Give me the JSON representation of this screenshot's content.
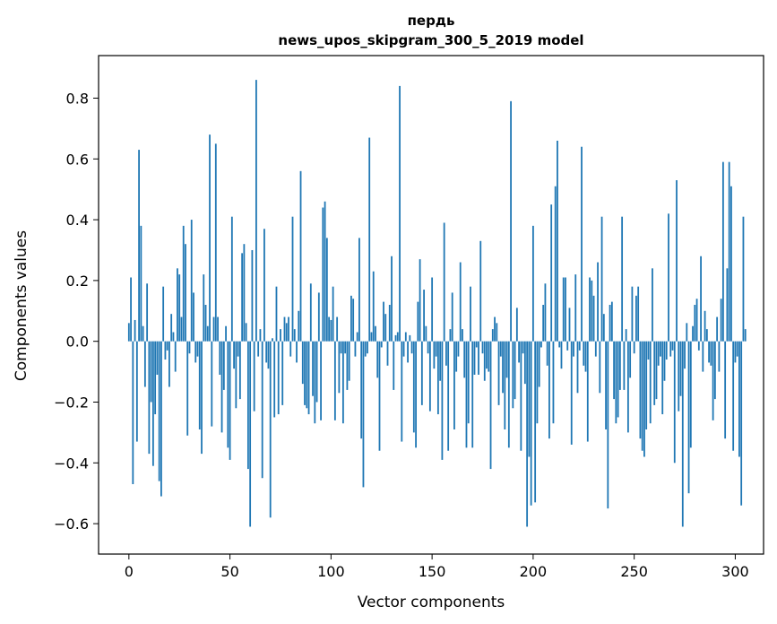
{
  "chart_data": {
    "type": "bar",
    "title_line1": "пердь",
    "title_line2": "news_upos_skipgram_300_5_2019 model",
    "xlabel": "Vector components",
    "ylabel": "Components values",
    "xlim": [
      -15,
      314
    ],
    "ylim": [
      -0.7,
      0.94
    ],
    "xticks": [
      0,
      50,
      100,
      150,
      200,
      250,
      300
    ],
    "yticks": [
      -0.6,
      -0.4,
      -0.2,
      0.0,
      0.2,
      0.4,
      0.6,
      0.8
    ],
    "xtick_labels": [
      "0",
      "50",
      "100",
      "150",
      "200",
      "250",
      "300"
    ],
    "ytick_labels": [
      "−0.6",
      "−0.4",
      "−0.2",
      "0.0",
      "0.2",
      "0.4",
      "0.6",
      "0.8"
    ],
    "bar_color": "#1f77b4",
    "grid": false,
    "values": [
      0.06,
      0.21,
      -0.47,
      0.07,
      -0.33,
      0.63,
      0.38,
      0.05,
      -0.15,
      0.19,
      -0.37,
      -0.2,
      -0.41,
      -0.24,
      -0.11,
      -0.46,
      -0.51,
      0.18,
      -0.06,
      -0.03,
      -0.15,
      0.09,
      0.03,
      -0.1,
      0.24,
      0.22,
      0.08,
      0.38,
      0.32,
      -0.31,
      -0.04,
      0.4,
      0.16,
      -0.07,
      -0.05,
      -0.29,
      -0.37,
      0.22,
      0.12,
      0.05,
      0.68,
      -0.28,
      0.08,
      0.65,
      0.08,
      -0.11,
      -0.3,
      -0.16,
      0.05,
      -0.35,
      -0.39,
      0.41,
      -0.09,
      -0.22,
      -0.05,
      -0.19,
      0.29,
      0.32,
      0.06,
      -0.42,
      -0.61,
      0.3,
      -0.23,
      0.86,
      -0.05,
      0.04,
      -0.45,
      0.37,
      -0.07,
      -0.09,
      -0.58,
      0.01,
      -0.25,
      0.18,
      -0.24,
      0.04,
      -0.21,
      0.08,
      0.06,
      0.08,
      -0.05,
      0.41,
      0.04,
      -0.07,
      0.1,
      0.56,
      -0.14,
      -0.21,
      -0.22,
      -0.24,
      0.19,
      -0.18,
      -0.27,
      -0.2,
      0.16,
      -0.26,
      0.44,
      0.46,
      0.34,
      0.08,
      0.07,
      0.18,
      -0.26,
      0.08,
      -0.17,
      -0.04,
      -0.27,
      -0.04,
      -0.16,
      -0.13,
      0.15,
      0.14,
      -0.05,
      0.03,
      0.34,
      -0.32,
      -0.48,
      -0.05,
      -0.04,
      0.67,
      0.03,
      0.23,
      0.05,
      -0.12,
      -0.36,
      -0.02,
      0.13,
      0.09,
      -0.08,
      0.12,
      0.28,
      -0.16,
      0.02,
      0.03,
      0.84,
      -0.33,
      -0.05,
      0.03,
      -0.07,
      0.02,
      -0.04,
      -0.3,
      -0.35,
      0.13,
      0.27,
      -0.21,
      0.17,
      0.05,
      -0.04,
      -0.23,
      0.21,
      -0.09,
      -0.05,
      -0.24,
      -0.13,
      -0.39,
      0.39,
      -0.08,
      -0.36,
      0.04,
      0.16,
      -0.29,
      -0.1,
      -0.05,
      0.26,
      0.04,
      -0.12,
      -0.35,
      -0.27,
      0.18,
      -0.35,
      -0.11,
      -0.02,
      -0.11,
      0.33,
      -0.04,
      -0.13,
      -0.09,
      -0.1,
      -0.42,
      0.04,
      0.08,
      0.06,
      -0.21,
      -0.05,
      -0.17,
      -0.29,
      -0.12,
      -0.35,
      0.79,
      -0.22,
      -0.19,
      0.11,
      -0.07,
      -0.36,
      -0.04,
      -0.14,
      -0.61,
      -0.38,
      -0.54,
      0.38,
      -0.53,
      -0.27,
      -0.15,
      -0.02,
      0.12,
      0.19,
      -0.08,
      -0.32,
      0.45,
      -0.27,
      0.51,
      0.66,
      -0.02,
      -0.09,
      0.21,
      0.21,
      -0.03,
      0.11,
      -0.34,
      -0.05,
      0.22,
      -0.17,
      -0.03,
      0.64,
      -0.08,
      -0.1,
      -0.33,
      0.21,
      0.2,
      0.15,
      -0.05,
      0.26,
      -0.17,
      0.41,
      0.09,
      -0.29,
      -0.55,
      0.12,
      0.13,
      -0.19,
      -0.27,
      -0.25,
      -0.16,
      0.41,
      -0.16,
      0.04,
      -0.3,
      -0.12,
      0.18,
      -0.04,
      0.15,
      0.18,
      -0.32,
      -0.36,
      -0.38,
      -0.29,
      -0.06,
      -0.27,
      0.24,
      -0.21,
      -0.19,
      -0.08,
      -0.05,
      -0.24,
      -0.13,
      -0.06,
      0.42,
      -0.05,
      -0.03,
      -0.4,
      0.53,
      -0.23,
      -0.18,
      -0.61,
      -0.09,
      0.06,
      -0.5,
      -0.35,
      0.05,
      0.12,
      0.14,
      -0.03,
      0.28,
      -0.1,
      0.1,
      0.04,
      -0.07,
      -0.08,
      -0.26,
      -0.19,
      0.08,
      -0.1,
      0.14,
      0.59,
      -0.32,
      0.24,
      0.59,
      0.51,
      -0.36,
      -0.07,
      -0.05,
      -0.38,
      -0.54,
      0.41,
      0.04
    ]
  }
}
